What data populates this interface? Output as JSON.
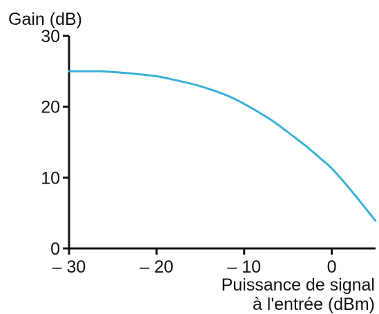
{
  "chart_data": {
    "type": "line",
    "title": "",
    "ylabel": "Gain (dB)",
    "xlabel_lines": [
      "Puissance de signal",
      "à l'entrée (dBm)"
    ],
    "xlim": [
      -30,
      5
    ],
    "ylim": [
      0,
      30
    ],
    "x_ticks": [
      -30,
      -20,
      -10,
      0
    ],
    "x_tick_labels": [
      "– 30",
      "– 20",
      "– 10",
      "0"
    ],
    "y_ticks": [
      0,
      10,
      20,
      30
    ],
    "y_tick_labels": [
      "0",
      "10",
      "20",
      "30"
    ],
    "grid": false,
    "line_color": "#3ab0d8",
    "series": [
      {
        "x": [
          -30,
          -27,
          -25,
          -23,
          -20,
          -18,
          -15,
          -12,
          -10,
          -7,
          -5,
          -3,
          -1,
          0,
          2,
          5
        ],
        "y": [
          25.0,
          25.0,
          24.9,
          24.7,
          24.3,
          23.8,
          22.9,
          21.6,
          20.4,
          18.2,
          16.4,
          14.5,
          12.4,
          11.3,
          8.5,
          3.9
        ]
      }
    ]
  }
}
